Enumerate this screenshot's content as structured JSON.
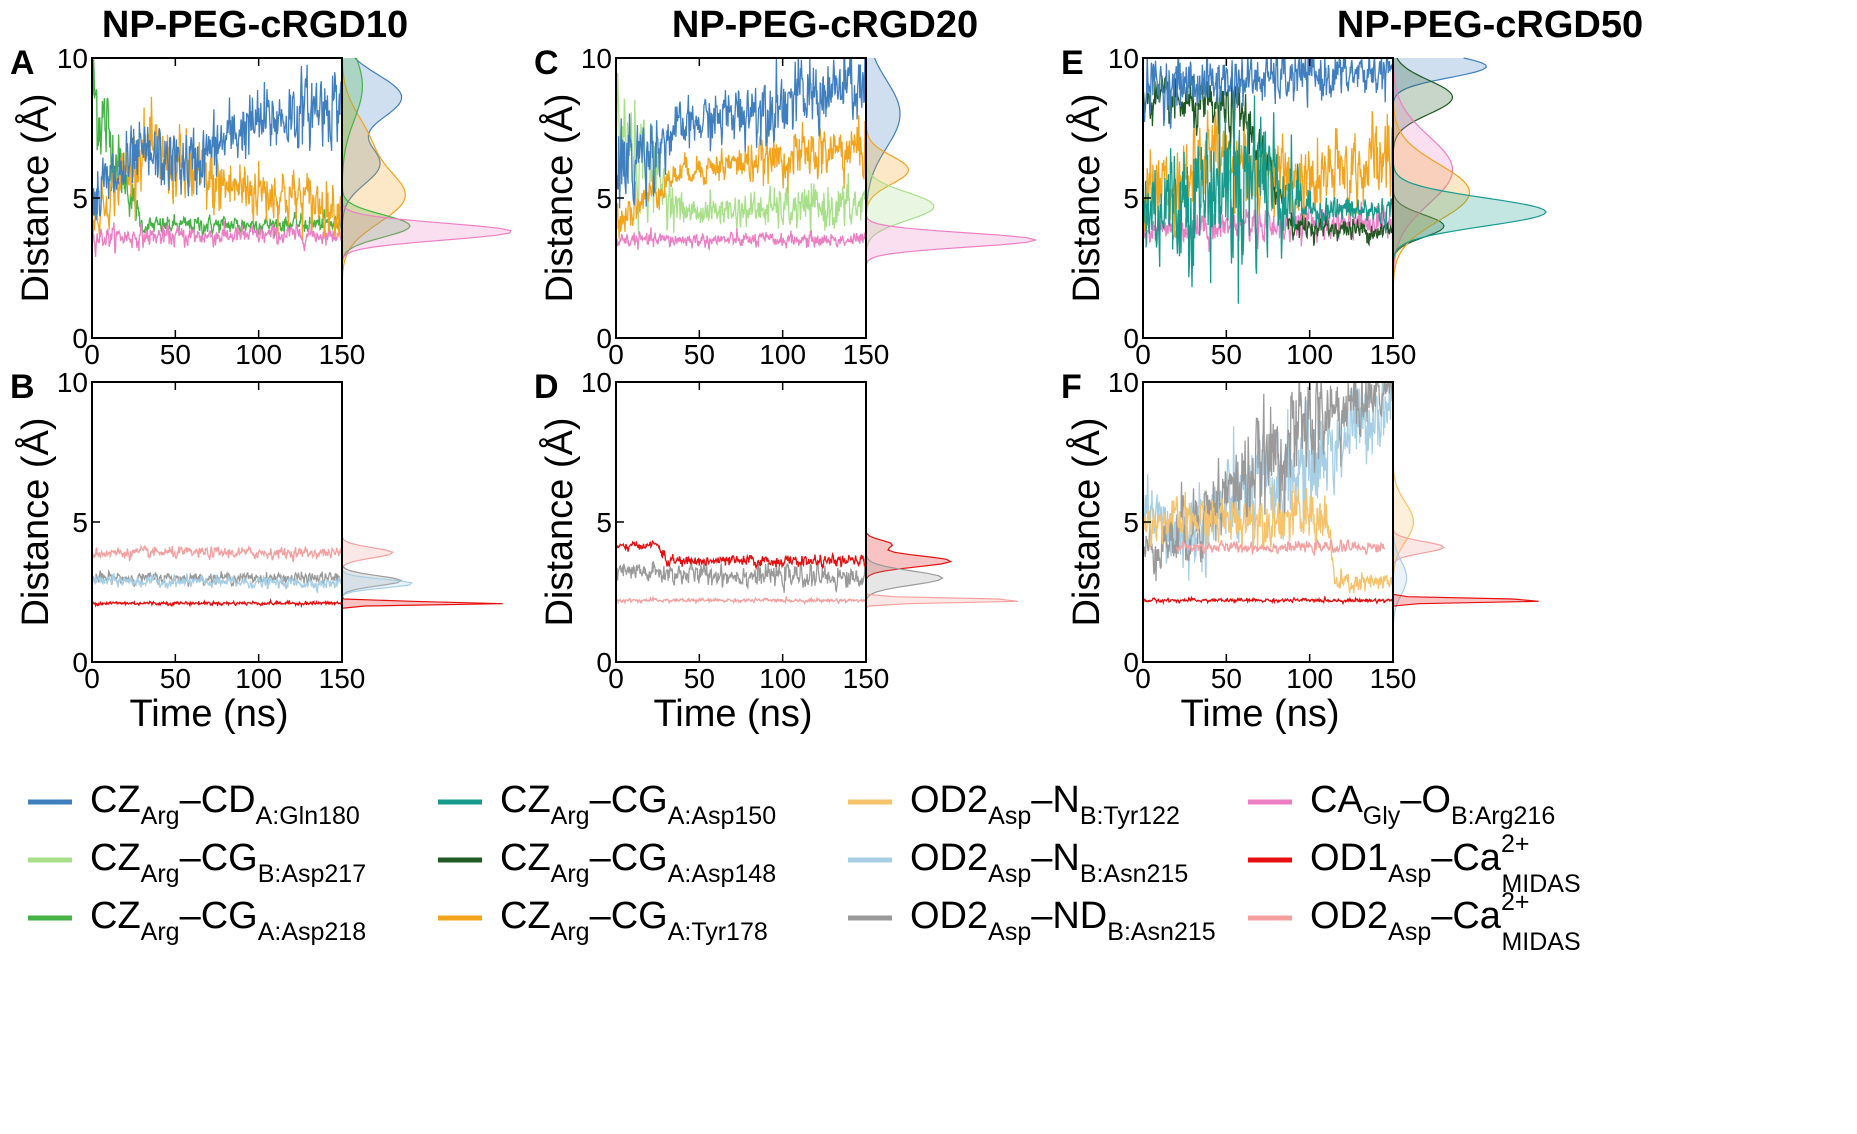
{
  "figure": {
    "columns": [
      "NP-PEG-cRGD10",
      "NP-PEG-cRGD20",
      "NP-PEG-cRGD50"
    ]
  },
  "axes_common": {
    "ylabel": "Distance (Å)",
    "xlabel": "Time (ns)",
    "xlim": [
      0,
      150
    ],
    "ylim": [
      0,
      10
    ],
    "xticks": [
      "0",
      "50",
      "100",
      "150"
    ],
    "yticks": [
      "0",
      "5",
      "10"
    ]
  },
  "colors": {
    "CZ-CD_Gln180": "#3f7fbf",
    "CZ-CG_B_Asp217": "#a8e08a",
    "CZ-CG_A_Asp218": "#44b244",
    "CZ-CG_A_Asp150": "#159a8c",
    "CZ-CG_A_Asp148": "#1f5a22",
    "CZ-CG_A_Tyr178": "#f2a41c",
    "OD2-N_B_Tyr122": "#f6c26a",
    "OD2-N_B_Asn215": "#a6cfe6",
    "OD2-ND_B_Asn215": "#9a9a9a",
    "CA-O_B_Arg216": "#ec7fc3",
    "OD1-Ca_MIDAS": "#e60f0f",
    "OD2-Ca_MIDAS": "#f4a0a0"
  },
  "legend": [
    {
      "key": "CZ-CD_Gln180",
      "a": "CZ",
      "asub": "Arg",
      "mid": "–CD",
      "bsub": "A:Gln180",
      "sup": ""
    },
    {
      "key": "CZ-CG_B_Asp217",
      "a": "CZ",
      "asub": "Arg",
      "mid": "–CG",
      "bsub": "B:Asp217",
      "sup": ""
    },
    {
      "key": "CZ-CG_A_Asp218",
      "a": "CZ",
      "asub": "Arg",
      "mid": "–CG",
      "bsub": "A:Asp218",
      "sup": ""
    },
    {
      "key": "CZ-CG_A_Asp150",
      "a": "CZ",
      "asub": "Arg",
      "mid": "–CG",
      "bsub": "A:Asp150",
      "sup": ""
    },
    {
      "key": "CZ-CG_A_Asp148",
      "a": "CZ",
      "asub": "Arg",
      "mid": "–CG",
      "bsub": "A:Asp148",
      "sup": ""
    },
    {
      "key": "CZ-CG_A_Tyr178",
      "a": "CZ",
      "asub": "Arg",
      "mid": "–CG",
      "bsub": "A:Tyr178",
      "sup": ""
    },
    {
      "key": "OD2-N_B_Tyr122",
      "a": "OD2",
      "asub": "Asp",
      "mid": "–N",
      "bsub": "B:Tyr122",
      "sup": ""
    },
    {
      "key": "OD2-N_B_Asn215",
      "a": "OD2",
      "asub": "Asp",
      "mid": "–N",
      "bsub": "B:Asn215",
      "sup": ""
    },
    {
      "key": "OD2-ND_B_Asn215",
      "a": "OD2",
      "asub": "Asp",
      "mid": "–ND",
      "bsub": "B:Asn215",
      "sup": ""
    },
    {
      "key": "CA-O_B_Arg216",
      "a": "CA",
      "asub": "Gly",
      "mid": "–O",
      "bsub": "B:Arg216",
      "sup": ""
    },
    {
      "key": "OD1-Ca_MIDAS",
      "a": "OD1",
      "asub": "Asp",
      "mid": "–Ca",
      "bsub": "MIDAS",
      "sup": "2+"
    },
    {
      "key": "OD2-Ca_MIDAS",
      "a": "OD2",
      "asub": "Asp",
      "mid": "–Ca",
      "bsub": "MIDAS",
      "sup": "2+"
    }
  ],
  "chart_data": [
    {
      "panel": "A",
      "type": "line",
      "xlim": [
        0,
        150
      ],
      "ylim": [
        0,
        10
      ],
      "series": [
        {
          "name": "CZ-CG_A_Asp218",
          "segments": [
            [
              0,
              8.8,
              1.6
            ],
            [
              30,
              4.0,
              0.25
            ],
            [
              150,
              4.1,
              0.25
            ]
          ]
        },
        {
          "name": "CA-O_B_Arg216",
          "segments": [
            [
              0,
              3.6,
              0.3
            ],
            [
              150,
              3.7,
              0.25
            ]
          ]
        },
        {
          "name": "CZ-CG_A_Tyr178",
          "segments": [
            [
              0,
              4.2,
              0.5
            ],
            [
              30,
              6.8,
              1.0
            ],
            [
              70,
              5.5,
              1.0
            ],
            [
              110,
              5.2,
              0.8
            ],
            [
              150,
              4.6,
              0.7
            ]
          ]
        },
        {
          "name": "CZ-CD_Gln180",
          "segments": [
            [
              0,
              5.0,
              1.0
            ],
            [
              30,
              6.5,
              0.9
            ],
            [
              60,
              6.2,
              0.9
            ],
            [
              90,
              7.5,
              0.9
            ],
            [
              120,
              8.0,
              1.0
            ],
            [
              150,
              8.5,
              1.0
            ]
          ]
        }
      ],
      "density": [
        {
          "name": "CZ-CD_Gln180",
          "peaks": [
            [
              8.6,
              0.35,
              0.8
            ],
            [
              6.2,
              0.22,
              0.7
            ]
          ]
        },
        {
          "name": "CZ-CG_A_Tyr178",
          "peaks": [
            [
              5.0,
              0.35,
              0.9
            ],
            [
              7.0,
              0.15,
              1.0
            ]
          ]
        },
        {
          "name": "CZ-CG_A_Asp218",
          "peaks": [
            [
              4.0,
              0.4,
              0.4
            ],
            [
              9.0,
              0.12,
              1.2
            ]
          ]
        },
        {
          "name": "CA-O_B_Arg216",
          "peaks": [
            [
              3.8,
              1.0,
              0.3
            ]
          ]
        }
      ]
    },
    {
      "panel": "B",
      "type": "line",
      "xlim": [
        0,
        150
      ],
      "ylim": [
        0,
        10
      ],
      "series": [
        {
          "name": "OD2-ND_B_Asn215",
          "segments": [
            [
              0,
              3.0,
              0.15
            ],
            [
              150,
              3.0,
              0.15
            ]
          ]
        },
        {
          "name": "OD2-N_B_Asn215",
          "segments": [
            [
              0,
              2.9,
              0.15
            ],
            [
              150,
              2.8,
              0.15
            ]
          ]
        },
        {
          "name": "OD2-Ca_MIDAS",
          "segments": [
            [
              0,
              3.9,
              0.15
            ],
            [
              150,
              3.9,
              0.15
            ]
          ]
        },
        {
          "name": "OD1-Ca_MIDAS",
          "segments": [
            [
              0,
              2.1,
              0.05
            ],
            [
              150,
              2.1,
              0.05
            ]
          ]
        }
      ],
      "density": [
        {
          "name": "OD2-Ca_MIDAS",
          "peaks": [
            [
              3.9,
              0.3,
              0.18
            ]
          ]
        },
        {
          "name": "OD2-ND_B_Asn215",
          "peaks": [
            [
              2.9,
              0.35,
              0.18
            ]
          ]
        },
        {
          "name": "OD2-N_B_Asn215",
          "peaks": [
            [
              2.8,
              0.42,
              0.15
            ]
          ]
        },
        {
          "name": "OD1-Ca_MIDAS",
          "peaks": [
            [
              2.1,
              1.0,
              0.05
            ]
          ]
        }
      ]
    },
    {
      "panel": "C",
      "type": "line",
      "xlim": [
        0,
        150
      ],
      "ylim": [
        0,
        10
      ],
      "series": [
        {
          "name": "CZ-CG_B_Asp217",
          "segments": [
            [
              0,
              7.5,
              2.0
            ],
            [
              40,
              4.5,
              0.35
            ],
            [
              150,
              4.7,
              0.7
            ]
          ]
        },
        {
          "name": "CA-O_B_Arg216",
          "segments": [
            [
              0,
              3.5,
              0.2
            ],
            [
              150,
              3.5,
              0.2
            ]
          ]
        },
        {
          "name": "CZ-CG_A_Tyr178",
          "segments": [
            [
              0,
              4.3,
              0.6
            ],
            [
              40,
              6.0,
              0.35
            ],
            [
              110,
              6.5,
              0.7
            ],
            [
              150,
              6.8,
              0.8
            ]
          ]
        },
        {
          "name": "CZ-CD_Gln180",
          "segments": [
            [
              0,
              6.0,
              1.5
            ],
            [
              40,
              7.5,
              0.6
            ],
            [
              100,
              8.5,
              1.0
            ],
            [
              150,
              9.0,
              1.0
            ]
          ]
        }
      ],
      "density": [
        {
          "name": "CZ-CD_Gln180",
          "peaks": [
            [
              8.0,
              0.2,
              1.2
            ]
          ]
        },
        {
          "name": "CZ-CG_A_Tyr178",
          "peaks": [
            [
              6.0,
              0.25,
              0.5
            ]
          ]
        },
        {
          "name": "CZ-CG_B_Asp217",
          "peaks": [
            [
              4.7,
              0.4,
              0.5
            ]
          ]
        },
        {
          "name": "CA-O_B_Arg216",
          "peaks": [
            [
              3.5,
              1.0,
              0.25
            ]
          ]
        }
      ]
    },
    {
      "panel": "D",
      "type": "line",
      "xlim": [
        0,
        150
      ],
      "ylim": [
        0,
        10
      ],
      "series": [
        {
          "name": "OD2-ND_B_Asn215",
          "segments": [
            [
              0,
              3.2,
              0.3
            ],
            [
              150,
              3.0,
              0.3
            ]
          ]
        },
        {
          "name": "OD2-Ca_MIDAS",
          "segments": [
            [
              0,
              2.2,
              0.05
            ],
            [
              150,
              2.2,
              0.05
            ]
          ]
        },
        {
          "name": "OD1-Ca_MIDAS",
          "segments": [
            [
              0,
              4.1,
              0.1
            ],
            [
              25,
              4.2,
              0.1
            ],
            [
              30,
              3.6,
              0.15
            ],
            [
              150,
              3.6,
              0.15
            ]
          ]
        }
      ],
      "density": [
        {
          "name": "OD1-Ca_MIDAS",
          "peaks": [
            [
              3.6,
              0.5,
              0.2
            ],
            [
              4.2,
              0.15,
              0.15
            ]
          ]
        },
        {
          "name": "OD2-ND_B_Asn215",
          "peaks": [
            [
              3.0,
              0.45,
              0.25
            ]
          ]
        },
        {
          "name": "OD2-Ca_MIDAS",
          "peaks": [
            [
              2.2,
              1.0,
              0.07
            ]
          ]
        }
      ]
    },
    {
      "panel": "E",
      "type": "line",
      "xlim": [
        0,
        150
      ],
      "ylim": [
        0,
        10
      ],
      "series": [
        {
          "name": "CA-O_B_Arg216",
          "segments": [
            [
              0,
              3.8,
              0.4
            ],
            [
              30,
              4.0,
              0.5
            ],
            [
              150,
              4.2,
              0.5
            ]
          ]
        },
        {
          "name": "CZ-CG_A_Tyr178",
          "segments": [
            [
              0,
              5.0,
              1.2
            ],
            [
              40,
              6.5,
              1.2
            ],
            [
              100,
              5.5,
              1.0
            ],
            [
              150,
              6.5,
              1.2
            ]
          ]
        },
        {
          "name": "CZ-CG_A_Asp148",
          "segments": [
            [
              0,
              8.5,
              0.6
            ],
            [
              60,
              8.0,
              0.8
            ],
            [
              90,
              4.0,
              0.3
            ],
            [
              150,
              3.8,
              0.3
            ]
          ]
        },
        {
          "name": "CZ-CG_A_Asp150",
          "segments": [
            [
              0,
              4.5,
              1.5
            ],
            [
              70,
              6.0,
              2.5
            ],
            [
              100,
              4.6,
              0.4
            ],
            [
              150,
              4.5,
              0.4
            ]
          ]
        },
        {
          "name": "CZ-CD_Gln180",
          "segments": [
            [
              0,
              9.0,
              0.8
            ],
            [
              150,
              9.5,
              0.6
            ]
          ]
        }
      ],
      "density": [
        {
          "name": "CZ-CD_Gln180",
          "peaks": [
            [
              9.7,
              0.55,
              0.4
            ]
          ]
        },
        {
          "name": "CZ-CG_A_Asp148",
          "peaks": [
            [
              8.6,
              0.35,
              0.6
            ],
            [
              4.0,
              0.3,
              0.4
            ]
          ]
        },
        {
          "name": "CA-O_B_Arg216",
          "peaks": [
            [
              6.0,
              0.35,
              1.2
            ]
          ]
        },
        {
          "name": "CZ-CG_A_Tyr178",
          "peaks": [
            [
              5.2,
              0.45,
              1.0
            ]
          ]
        },
        {
          "name": "CZ-CG_A_Asp150",
          "peaks": [
            [
              4.5,
              0.9,
              0.5
            ]
          ]
        }
      ]
    },
    {
      "panel": "F",
      "type": "line",
      "xlim": [
        0,
        150
      ],
      "ylim": [
        0,
        10
      ],
      "series": [
        {
          "name": "OD2-N_B_Asn215",
          "segments": [
            [
              0,
              5.5,
              0.5
            ],
            [
              20,
              4.5,
              1.2
            ],
            [
              100,
              7.0,
              1.5
            ],
            [
              150,
              9.5,
              1.0
            ]
          ]
        },
        {
          "name": "OD2-ND_B_Asn215",
          "segments": [
            [
              0,
              4.0,
              0.5
            ],
            [
              20,
              4.5,
              1.0
            ],
            [
              100,
              8.5,
              1.5
            ],
            [
              150,
              9.8,
              0.5
            ]
          ]
        },
        {
          "name": "OD2-N_B_Tyr122",
          "segments": [
            [
              0,
              5.0,
              0.5
            ],
            [
              110,
              5.2,
              0.8
            ],
            [
              115,
              2.8,
              0.3
            ],
            [
              150,
              2.8,
              0.3
            ]
          ]
        },
        {
          "name": "OD2-Ca_MIDAS",
          "segments": [
            [
              20,
              4.1,
              0.15
            ],
            [
              145,
              4.1,
              0.15
            ]
          ]
        },
        {
          "name": "OD1-Ca_MIDAS",
          "segments": [
            [
              0,
              2.2,
              0.05
            ],
            [
              150,
              2.2,
              0.05
            ]
          ]
        }
      ],
      "density": [
        {
          "name": "OD2-N_B_Tyr122",
          "peaks": [
            [
              5.0,
              0.12,
              0.7
            ]
          ]
        },
        {
          "name": "OD2-Ca_MIDAS",
          "peaks": [
            [
              4.1,
              0.3,
              0.2
            ]
          ]
        },
        {
          "name": "OD2-N_B_Asn215",
          "peaks": [
            [
              3.0,
              0.08,
              0.6
            ]
          ]
        },
        {
          "name": "OD1-Ca_MIDAS",
          "peaks": [
            [
              2.2,
              1.0,
              0.06
            ]
          ]
        }
      ]
    }
  ]
}
